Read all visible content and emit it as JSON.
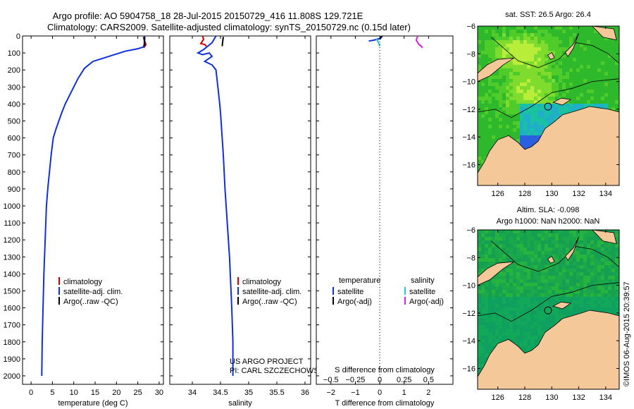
{
  "header": {
    "title_line1": "Argo profile: AO 5904758_18 28-Jul-2015 20150729_416 11.808S 129.721E",
    "title_line2": "Climatology: CARS2009. Satellite-adjusted climatology: synTS_20150729.nc (0.15d later)"
  },
  "colors": {
    "climatology": "#d40000",
    "satellite_adj": "#1030e0",
    "argo": "#000000",
    "sat_salinity": "#20c8e0",
    "argo_salinity": "#e020e0",
    "land": "#f5c89a",
    "ocean_base": "#22b822"
  },
  "chart_data": [
    {
      "id": "temperature",
      "type": "line",
      "xlabel": "temperature (deg C)",
      "xlim": [
        -2,
        31
      ],
      "xticks": [
        0,
        5,
        10,
        15,
        20,
        25,
        30
      ],
      "ylim": [
        0,
        2050
      ],
      "yticks": [
        0,
        100,
        200,
        300,
        400,
        500,
        600,
        700,
        800,
        900,
        1000,
        1100,
        1200,
        1300,
        1400,
        1500,
        1600,
        1700,
        1800,
        1900,
        2000
      ],
      "series": [
        {
          "name": "climatology",
          "color": "red",
          "x": [
            26.3,
            26.5,
            26.9,
            26.4
          ],
          "y": [
            5,
            25,
            50,
            70
          ]
        },
        {
          "name": "satellite-adj. clim.",
          "color": "blue",
          "x": [
            26.6,
            26.5,
            26.3,
            25.0,
            22.0,
            17.0,
            14.5,
            12.5,
            11.0,
            10.0,
            9.0,
            8.0,
            7.2,
            6.5,
            5.8,
            5.2,
            4.7,
            4.3,
            3.9,
            3.6,
            3.3,
            3.0,
            2.8,
            2.6,
            2.5
          ],
          "y": [
            0,
            50,
            65,
            75,
            90,
            130,
            150,
            190,
            250,
            300,
            350,
            400,
            450,
            500,
            550,
            600,
            700,
            800,
            900,
            1000,
            1200,
            1400,
            1600,
            1800,
            2000
          ]
        },
        {
          "name": "Argo(..raw -QC)",
          "color": "black",
          "x": [
            26.6,
            26.6
          ],
          "y": [
            5,
            60
          ]
        }
      ],
      "legend": [
        "climatology",
        "satellite-adj. clim.",
        "Argo(..raw -QC)"
      ]
    },
    {
      "id": "salinity",
      "type": "line",
      "xlabel": "salinity",
      "xlim": [
        33.6,
        36.1
      ],
      "xticks": [
        34,
        34.5,
        35,
        35.5,
        36
      ],
      "xtick_labels": [
        "34",
        "34.5",
        "35",
        "35.5",
        "36"
      ],
      "ylim": [
        0,
        2050
      ],
      "series": [
        {
          "name": "climatology",
          "color": "red",
          "x": [
            34.18,
            34.2,
            34.15,
            34.22,
            34.25
          ],
          "y": [
            0,
            20,
            45,
            50,
            60
          ]
        },
        {
          "name": "satellite-adj. clim.",
          "color": "blue",
          "x": [
            34.42,
            34.35,
            34.2,
            34.1,
            34.18,
            34.3,
            34.35,
            34.22,
            34.35,
            34.42,
            34.44,
            34.46,
            34.48,
            34.5,
            34.52,
            34.55,
            34.58,
            34.62,
            34.66,
            34.7,
            34.72,
            34.72
          ],
          "y": [
            0,
            40,
            80,
            100,
            110,
            100,
            120,
            150,
            170,
            200,
            260,
            320,
            380,
            450,
            550,
            700,
            900,
            1100,
            1300,
            1600,
            1800,
            2000
          ]
        },
        {
          "name": "Argo(..raw -QC)",
          "color": "black",
          "x": [
            34.55,
            34.54,
            34.53
          ],
          "y": [
            5,
            30,
            60
          ]
        }
      ],
      "legend": [
        "climatology",
        "satellite-adj. clim.",
        "Argo(..raw -QC)"
      ],
      "annotation": [
        "US ARGO PROJECT",
        "PI: CARL SZCZECHOWSKI"
      ]
    },
    {
      "id": "difference",
      "type": "line",
      "xlabel": "T difference from climatology",
      "x2label": "S difference from climatology",
      "xlim": [
        -2.6,
        3.0
      ],
      "xticks": [
        -2,
        -1,
        0,
        1,
        2
      ],
      "xtick_labels": [
        "−2",
        "−1",
        "0",
        "1",
        "2"
      ],
      "s_tick_labels": [
        "−0.5",
        "−0.25",
        "0",
        "0.25",
        "0.5"
      ],
      "ylim": [
        0,
        2050
      ],
      "series": [
        {
          "name": "T satellite",
          "color": "blue",
          "x": [
            0.05,
            0.0,
            -0.25,
            -0.45
          ],
          "y": [
            0,
            15,
            25,
            30
          ]
        },
        {
          "name": "T Argo(-adj)",
          "color": "black",
          "x": [
            0.1,
            0.05,
            0.0
          ],
          "y": [
            0,
            10,
            20
          ]
        },
        {
          "name": "S satellite",
          "color": "cyan",
          "x": [
            -0.15,
            -0.05,
            0.0
          ],
          "y": [
            15,
            40,
            60
          ]
        },
        {
          "name": "S Argo(-adj)",
          "color": "magenta",
          "x": [
            1.55,
            1.5,
            1.6,
            1.7,
            1.75
          ],
          "y": [
            0,
            25,
            50,
            60,
            70
          ]
        }
      ],
      "legend_temperature": {
        "heading": "temperature",
        "items": [
          "satellite",
          "Argo(-adj)"
        ]
      },
      "legend_salinity": {
        "heading": "salinity",
        "items": [
          "satellite",
          "Argo(-adj)"
        ]
      }
    },
    {
      "id": "sst_map",
      "type": "heatmap",
      "title": "sat. SST: 26.5  Argo: 26.4",
      "xlim": [
        124.5,
        135.0
      ],
      "ylim": [
        -17.5,
        -6.0
      ],
      "xticks": [
        126,
        128,
        130,
        132,
        134
      ],
      "yticks": [
        -6,
        -8,
        -10,
        -12,
        -14,
        -16
      ],
      "argo_position": {
        "lon": 129.721,
        "lat": -11.808
      }
    },
    {
      "id": "sla_map",
      "type": "heatmap",
      "title_line1": "Altim. SLA: -0.098",
      "title_line2": "Argo h1000: NaN h2000: NaN",
      "xlim": [
        124.5,
        135.0
      ],
      "ylim": [
        -17.5,
        -6.0
      ],
      "xticks": [
        126,
        128,
        130,
        132,
        134
      ],
      "yticks": [
        -6,
        -8,
        -10,
        -12,
        -14,
        -16
      ],
      "argo_position": {
        "lon": 129.721,
        "lat": -11.808
      }
    }
  ],
  "footer": {
    "credit": "©IMOS 06-Aug-2015 20:39:57"
  }
}
